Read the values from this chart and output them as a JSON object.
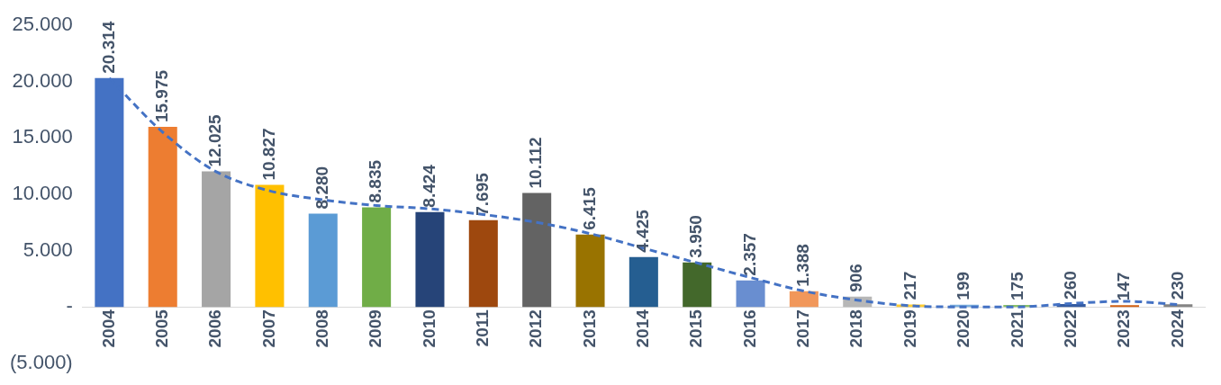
{
  "chart_data": {
    "type": "bar",
    "categories": [
      "2004",
      "2005",
      "2006",
      "2007",
      "2008",
      "2009",
      "2010",
      "2011",
      "2012",
      "2013",
      "2014",
      "2015",
      "2016",
      "2017",
      "2018",
      "2019",
      "2020",
      "2021",
      "2022",
      "2023",
      "2024"
    ],
    "series": [
      {
        "colors": [
          "#4472c4",
          "#ed7d31",
          "#a5a5a5",
          "#ffc000",
          "#5b9bd5",
          "#70ad47",
          "#264478",
          "#9e480e",
          "#636363",
          "#997300",
          "#255e91",
          "#43682b",
          "#698ed0",
          "#f1975a",
          "#b7b7b7",
          "#ffcd33",
          "#7cafdd",
          "#8cc168",
          "#335aa1",
          "#d26012",
          "#848484"
        ],
        "values": [
          20314,
          15975,
          12025,
          10827,
          8280,
          8835,
          8424,
          7695,
          10112,
          6415,
          4425,
          3950,
          2357,
          1388,
          906,
          217,
          199,
          175,
          260,
          147,
          230
        ],
        "value_labels": [
          "20.314",
          "15.975",
          "12.025",
          "10.827",
          "8.280",
          "8.835",
          "8.424",
          "7.695",
          "10.112",
          "6.415",
          "4.425",
          "3.950",
          "2.357",
          "1.388",
          "906",
          "217",
          "199",
          "175",
          "260",
          "147",
          "230"
        ]
      },
      {
        "type": "line",
        "color": "#4472c4",
        "line_style": "dashed",
        "marker": "none",
        "values": [
          20300,
          15500,
          12000,
          10300,
          9500,
          9000,
          8700,
          8200,
          7500,
          6500,
          5200,
          3900,
          2600,
          1400,
          600,
          100,
          0,
          0,
          300,
          500,
          200
        ]
      }
    ],
    "ylim": [
      -5000,
      25000
    ],
    "yticks": [
      {
        "value": -5000,
        "label": "(5.000)"
      },
      {
        "value": 0,
        "label": "-"
      },
      {
        "value": 5000,
        "label": "5.000"
      },
      {
        "value": 10000,
        "label": "10.000"
      },
      {
        "value": 15000,
        "label": "15.000"
      },
      {
        "value": 20000,
        "label": "20.000"
      },
      {
        "value": 25000,
        "label": "25.000"
      }
    ]
  }
}
